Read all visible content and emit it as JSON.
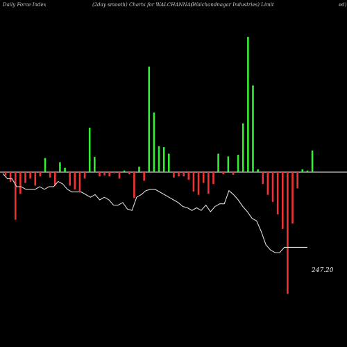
{
  "header": {
    "left": "Daily Force  Index",
    "center": "(2day smooth) Charts for WALCHANNAG",
    "right": "(Walchandnagar Industries) Limit",
    "tail": "ed)"
  },
  "chart_data": {
    "type": "bar",
    "title": "(2day smooth) Charts for WALCHANNAG",
    "colors": {
      "positive": "#33ee33",
      "negative": "#ee3333",
      "line": "#dddddd",
      "zero_line": "#ffffff",
      "background": "#000000"
    },
    "bars": [
      -6,
      -18,
      -88,
      -40,
      -20,
      -12,
      -25,
      -8,
      26,
      -10,
      -25,
      18,
      8,
      -25,
      -32,
      -35,
      -12,
      82,
      28,
      -8,
      -6,
      -8,
      -2,
      -12,
      3,
      -4,
      -48,
      10,
      -16,
      195,
      110,
      48,
      46,
      34,
      -10,
      -8,
      -8,
      -14,
      -36,
      -42,
      -20,
      -40,
      -22,
      34,
      -4,
      29,
      -5,
      32,
      90,
      250,
      160,
      5,
      -22,
      -42,
      -55,
      -78,
      -105,
      -225,
      -95,
      -30,
      5,
      3,
      40
    ],
    "line": [
      258,
      262,
      262,
      268,
      268,
      270,
      270,
      270,
      268,
      270,
      268,
      268,
      264,
      266,
      270,
      272,
      272,
      272,
      274,
      276,
      274,
      278,
      276,
      278,
      282,
      282,
      280,
      285,
      286,
      276,
      274,
      271,
      270,
      270,
      272,
      274,
      276,
      278,
      280,
      283,
      284,
      286,
      284,
      286,
      282,
      287,
      283,
      281,
      281,
      271,
      274,
      278,
      283,
      287,
      292,
      294,
      302,
      312,
      316,
      318,
      318,
      314,
      314,
      314,
      314,
      314,
      314
    ],
    "last_value_label": "247.20",
    "ylim": [
      -230,
      255
    ],
    "grid": false,
    "legend": "none"
  }
}
